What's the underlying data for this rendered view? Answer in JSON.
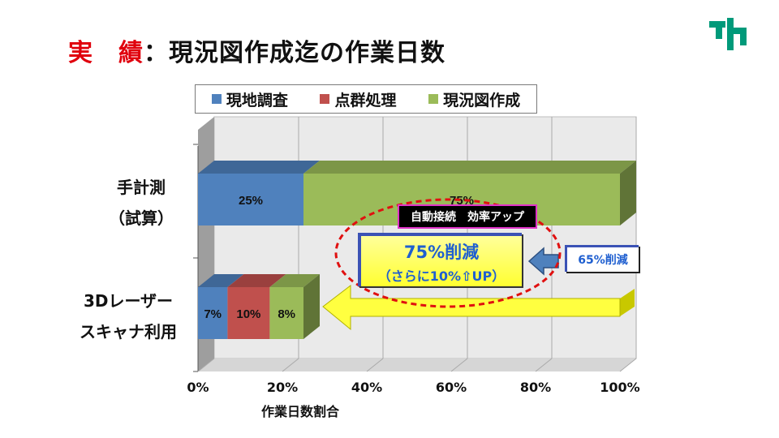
{
  "slide": {
    "title_accent": "実　績",
    "title_rest": "：現況図作成迄の作業日数"
  },
  "legend": [
    {
      "label": "現地調査",
      "color": "#4f81bd"
    },
    {
      "label": "点群処理",
      "color": "#c0504d"
    },
    {
      "label": "現況図作成",
      "color": "#9bbb59"
    }
  ],
  "categories": {
    "manual_line1": "手計測",
    "manual_line2": "（試算）",
    "laser_line1": "3Dレーザー",
    "laser_line2": "スキャナ利用"
  },
  "annotations": {
    "top_label": "自動接続　効率アップ",
    "main_big": "75%削減",
    "main_small": "（さらに10%⇧UP）",
    "side_label": "65%削減",
    "arrow_color": "#ffff40",
    "ellipse_color": "#e01010"
  },
  "chart_data": {
    "type": "bar",
    "orientation": "horizontal",
    "stacked": true,
    "categories": [
      "手計測（試算）",
      "3Dレーザースキャナ利用"
    ],
    "series": [
      {
        "name": "現地調査",
        "values": [
          25,
          7
        ],
        "labels": [
          "25%",
          "7%"
        ],
        "color": "#4f81bd"
      },
      {
        "name": "点群処理",
        "values": [
          0,
          10
        ],
        "labels": [
          "",
          "10%"
        ],
        "color": "#c0504d"
      },
      {
        "name": "現況図作成",
        "values": [
          75,
          8
        ],
        "labels": [
          "75%",
          "8%"
        ],
        "color": "#9bbb59"
      }
    ],
    "xlabel": "作業日数割合",
    "xlim": [
      0,
      100
    ],
    "xticks": [
      "0%",
      "20%",
      "40%",
      "60%",
      "80%",
      "100%"
    ],
    "grid": true,
    "legend_position": "top"
  }
}
